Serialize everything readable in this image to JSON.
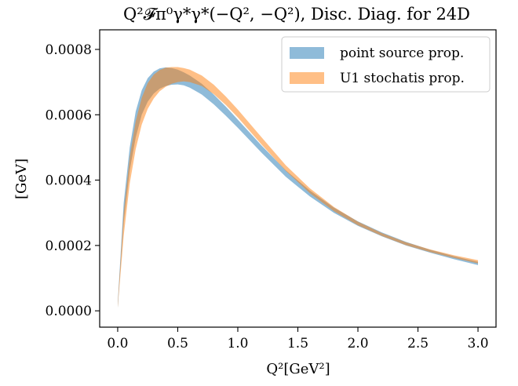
{
  "chart_data": {
    "type": "area",
    "title": "Q²𝓕π⁰γ*γ*(−Q², −Q²), Disc. Diag. for 24D",
    "xlabel": "Q²[GeV²]",
    "ylabel": "[GeV]",
    "xlim": [
      -0.15,
      3.15
    ],
    "ylim": [
      -5e-05,
      0.00086
    ],
    "xticks": [
      "0.0",
      "0.5",
      "1.0",
      "1.5",
      "2.0",
      "2.5",
      "3.0"
    ],
    "yticks": [
      "0.0000",
      "0.0002",
      "0.0004",
      "0.0006",
      "0.0008"
    ],
    "legend_position": "top-right",
    "grid": false,
    "series": [
      {
        "name": "point source prop.",
        "color": "#1f77b4",
        "opacity": 0.5,
        "x": [
          0.0,
          0.05,
          0.1,
          0.15,
          0.2,
          0.25,
          0.3,
          0.35,
          0.4,
          0.45,
          0.5,
          0.55,
          0.6,
          0.7,
          0.8,
          0.9,
          1.0,
          1.2,
          1.4,
          1.6,
          1.8,
          2.0,
          2.2,
          2.4,
          2.6,
          2.8,
          3.0
        ],
        "lower": [
          1e-05,
          0.00027,
          0.00043,
          0.00053,
          0.0006,
          0.00064,
          0.000665,
          0.00068,
          0.000688,
          0.000692,
          0.000693,
          0.00069,
          0.000683,
          0.000662,
          0.000632,
          0.000597,
          0.00056,
          0.000483,
          0.00041,
          0.00035,
          0.0003,
          0.00026,
          0.000228,
          0.0002,
          0.000178,
          0.000158,
          0.00014
        ],
        "upper": [
          2.5e-05,
          0.00033,
          0.0005,
          0.00061,
          0.000675,
          0.000712,
          0.000732,
          0.000742,
          0.000745,
          0.000743,
          0.000738,
          0.00073,
          0.00072,
          0.000695,
          0.000662,
          0.000625,
          0.000585,
          0.000505,
          0.00043,
          0.000368,
          0.000316,
          0.000274,
          0.00024,
          0.000211,
          0.000187,
          0.000167,
          0.00015
        ]
      },
      {
        "name": "U1 stochatis prop.",
        "color": "#ff7f0e",
        "opacity": 0.5,
        "x": [
          0.0,
          0.05,
          0.1,
          0.15,
          0.2,
          0.25,
          0.3,
          0.35,
          0.4,
          0.45,
          0.5,
          0.55,
          0.6,
          0.7,
          0.8,
          0.9,
          1.0,
          1.2,
          1.4,
          1.6,
          1.8,
          2.0,
          2.2,
          2.4,
          2.6,
          2.8,
          3.0
        ],
        "lower": [
          1e-05,
          0.00023,
          0.00039,
          0.000495,
          0.00057,
          0.000618,
          0.00065,
          0.000672,
          0.000686,
          0.000695,
          0.0007,
          0.000702,
          0.0007,
          0.000688,
          0.000663,
          0.00063,
          0.000592,
          0.000508,
          0.000428,
          0.00036,
          0.000305,
          0.000262,
          0.000229,
          0.000201,
          0.00018,
          0.000162,
          0.000145
        ],
        "upper": [
          2e-05,
          0.0003,
          0.00047,
          0.00058,
          0.000652,
          0.000697,
          0.000723,
          0.000737,
          0.000744,
          0.000746,
          0.000746,
          0.000743,
          0.000738,
          0.00072,
          0.000692,
          0.000656,
          0.000616,
          0.00053,
          0.000445,
          0.000375,
          0.000318,
          0.000273,
          0.000238,
          0.00021,
          0.000188,
          0.00017,
          0.000155
        ]
      }
    ]
  }
}
